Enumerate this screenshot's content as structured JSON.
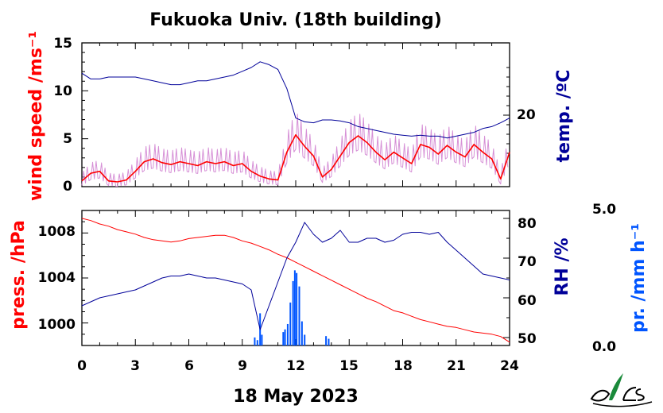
{
  "chart_data": [
    {
      "type": "line",
      "title": "Fukuoka Univ. (18th building)",
      "xlabel": "18 May 2023",
      "ylabel_left": "wind speed /ms⁻¹",
      "ylabel_right": "temp. /ºC",
      "ylim_left": [
        0,
        15
      ],
      "yticks_left": [
        "0",
        "5",
        "10",
        "15"
      ],
      "yticks_right": [
        "20"
      ],
      "temp_tick_value": 20,
      "x": [
        0,
        0.5,
        1,
        1.5,
        2,
        2.5,
        3,
        3.5,
        4,
        4.5,
        5,
        5.5,
        6,
        6.5,
        7,
        7.5,
        8,
        8.5,
        9,
        9.5,
        10,
        10.5,
        11,
        11.5,
        12,
        12.5,
        13,
        13.5,
        14,
        14.5,
        15,
        15.5,
        16,
        16.5,
        17,
        17.5,
        18,
        18.5,
        19,
        19.5,
        20,
        20.5,
        21,
        21.5,
        22,
        22.5,
        23,
        23.5,
        24
      ],
      "series": [
        {
          "name": "wind speed",
          "color": "#ff0000",
          "values": [
            0.6,
            1.4,
            1.6,
            0.6,
            0.5,
            0.7,
            1.6,
            2.6,
            2.9,
            2.5,
            2.3,
            2.6,
            2.4,
            2.2,
            2.6,
            2.4,
            2.6,
            2.2,
            2.4,
            1.6,
            1.1,
            0.8,
            0.7,
            3.6,
            5.4,
            4.2,
            3.2,
            1.0,
            1.8,
            3.2,
            4.6,
            5.3,
            4.6,
            3.6,
            2.8,
            3.6,
            3.0,
            2.4,
            4.4,
            4.1,
            3.4,
            4.3,
            3.6,
            3.1,
            4.4,
            3.6,
            2.9,
            0.8,
            3.6
          ]
        },
        {
          "name": "temp.",
          "color": "#000099",
          "values": [
            24.4,
            23.8,
            23.8,
            24.0,
            24.0,
            24.0,
            24.0,
            23.8,
            23.6,
            23.4,
            23.2,
            23.2,
            23.4,
            23.6,
            23.6,
            23.8,
            24.0,
            24.2,
            24.6,
            25.0,
            25.6,
            25.3,
            24.8,
            22.8,
            19.7,
            19.3,
            19.2,
            19.5,
            19.5,
            19.4,
            19.2,
            18.8,
            18.6,
            18.4,
            18.2,
            18.0,
            17.9,
            17.8,
            17.9,
            17.8,
            17.8,
            17.6,
            17.8,
            18.0,
            18.2,
            18.6,
            18.8,
            19.2,
            19.7
          ]
        }
      ]
    },
    {
      "type": "line",
      "xlabel": "18 May 2023",
      "ylabel_left": "press. /hPa",
      "ylabel_right": "RH /%",
      "ylabel_far_right": "pr. /mm h⁻¹",
      "ylim_left": [
        998,
        1010
      ],
      "yticks_left": [
        "1000",
        "1004",
        "1008"
      ],
      "ylim_right": [
        48,
        82
      ],
      "yticks_right": [
        "50",
        "60",
        "70",
        "80"
      ],
      "ylim_far_right": [
        0,
        5
      ],
      "far_right_labels": [
        "5.0",
        "0.0"
      ],
      "xticks": [
        "0",
        "3",
        "6",
        "9",
        "12",
        "15",
        "18",
        "21",
        "24"
      ],
      "x": [
        0,
        0.5,
        1,
        1.5,
        2,
        2.5,
        3,
        3.5,
        4,
        4.5,
        5,
        5.5,
        6,
        6.5,
        7,
        7.5,
        8,
        8.5,
        9,
        9.5,
        10,
        10.5,
        11,
        11.5,
        12,
        12.5,
        13,
        13.5,
        14,
        14.5,
        15,
        15.5,
        16,
        16.5,
        17,
        17.5,
        18,
        18.5,
        19,
        19.5,
        20,
        20.5,
        21,
        21.5,
        22,
        22.5,
        23,
        23.5,
        24
      ],
      "series": [
        {
          "name": "press.",
          "color": "#ff0000",
          "values": [
            1009.3,
            1009.1,
            1008.8,
            1008.6,
            1008.3,
            1008.1,
            1007.9,
            1007.6,
            1007.4,
            1007.3,
            1007.2,
            1007.3,
            1007.5,
            1007.6,
            1007.7,
            1007.8,
            1007.8,
            1007.6,
            1007.3,
            1007.1,
            1006.8,
            1006.5,
            1006.1,
            1005.8,
            1005.4,
            1005.0,
            1004.6,
            1004.2,
            1003.8,
            1003.4,
            1003.0,
            1002.6,
            1002.2,
            1001.9,
            1001.5,
            1001.1,
            1000.9,
            1000.6,
            1000.3,
            1000.1,
            999.9,
            999.7,
            999.6,
            999.4,
            999.2,
            999.1,
            999.0,
            998.8,
            998.3
          ]
        },
        {
          "name": "RH",
          "color": "#000099",
          "values": [
            58,
            59,
            60,
            60.5,
            61,
            61.5,
            62,
            63,
            64,
            65,
            65.5,
            65.5,
            66,
            65.5,
            65,
            65,
            64.5,
            64,
            63.5,
            62,
            52,
            58,
            64,
            70,
            74,
            79,
            76,
            74,
            75,
            77,
            74,
            74,
            75,
            75,
            74,
            74.5,
            76,
            76.5,
            76.5,
            76,
            76.5,
            74,
            72,
            70,
            68,
            66,
            65.5,
            65,
            64.5
          ]
        },
        {
          "name": "pr.",
          "color": "#0055ff",
          "x": [
            9.7,
            9.85,
            10.0,
            10.1,
            11.3,
            11.4,
            11.55,
            11.7,
            11.85,
            11.95,
            12.05,
            12.2,
            12.35,
            12.5,
            13.7,
            13.85
          ],
          "values": [
            0.3,
            0.2,
            1.2,
            0.4,
            0.5,
            0.6,
            0.8,
            1.6,
            2.4,
            2.8,
            2.7,
            2.2,
            0.9,
            0.4,
            0.35,
            0.25
          ]
        }
      ]
    }
  ]
}
